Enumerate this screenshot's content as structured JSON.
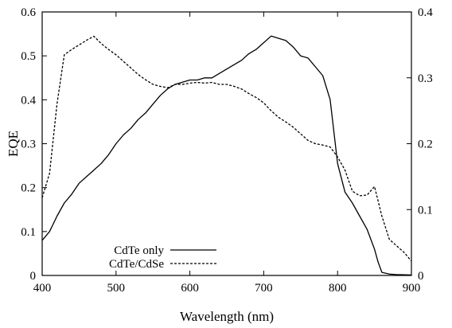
{
  "chart_data": {
    "type": "line",
    "xlabel": "Wavelength (nm)",
    "ylabel": "EQE",
    "y2label": "",
    "xlim": [
      400,
      900
    ],
    "ylim": [
      0,
      0.6
    ],
    "y2lim": [
      0,
      0.4
    ],
    "grid": false,
    "legend_position": "bottom-left",
    "x_ticks": [
      400,
      500,
      600,
      700,
      800,
      900
    ],
    "y_ticks": [
      0,
      0.1,
      0.2,
      0.3,
      0.4,
      0.5,
      0.6
    ],
    "y2_ticks": [
      0,
      0.1,
      0.2,
      0.3,
      0.4
    ],
    "x_tick_labels": [
      "400",
      "500",
      "600",
      "700",
      "800",
      "900"
    ],
    "y_tick_labels": [
      "0",
      "0.1",
      "0.2",
      "0.3",
      "0.4",
      "0.5",
      "0.6"
    ],
    "y2_tick_labels": [
      "0",
      "0.1",
      "0.2",
      "0.3",
      "0.4"
    ],
    "series": [
      {
        "name": "CdTe only",
        "axis": "left",
        "style": "solid",
        "color": "#000000",
        "x": [
          400,
          410,
          420,
          430,
          440,
          450,
          460,
          470,
          480,
          490,
          500,
          510,
          520,
          530,
          540,
          550,
          560,
          570,
          580,
          590,
          600,
          610,
          620,
          630,
          640,
          650,
          660,
          670,
          680,
          690,
          700,
          710,
          720,
          730,
          740,
          750,
          760,
          770,
          780,
          790,
          800,
          810,
          820,
          830,
          840,
          850,
          855,
          860,
          870,
          880,
          900
        ],
        "y": [
          0.08,
          0.1,
          0.135,
          0.165,
          0.185,
          0.21,
          0.225,
          0.24,
          0.255,
          0.275,
          0.3,
          0.32,
          0.335,
          0.355,
          0.37,
          0.39,
          0.41,
          0.425,
          0.435,
          0.44,
          0.445,
          0.445,
          0.45,
          0.45,
          0.46,
          0.47,
          0.48,
          0.49,
          0.505,
          0.515,
          0.53,
          0.545,
          0.54,
          0.535,
          0.52,
          0.5,
          0.495,
          0.475,
          0.455,
          0.4,
          0.255,
          0.19,
          0.165,
          0.135,
          0.105,
          0.06,
          0.03,
          0.007,
          0.003,
          0.002,
          0.001
        ]
      },
      {
        "name": "CdTe/CdSe",
        "axis": "right",
        "style": "dashed",
        "color": "#000000",
        "x": [
          400,
          410,
          420,
          430,
          440,
          450,
          460,
          470,
          480,
          490,
          500,
          510,
          520,
          530,
          540,
          550,
          560,
          570,
          580,
          590,
          600,
          610,
          620,
          630,
          640,
          650,
          660,
          670,
          680,
          690,
          700,
          710,
          720,
          730,
          740,
          750,
          760,
          770,
          780,
          790,
          800,
          810,
          820,
          830,
          840,
          850,
          860,
          870,
          880,
          890,
          900
        ],
        "y": [
          0.118,
          0.155,
          0.26,
          0.335,
          0.343,
          0.35,
          0.357,
          0.363,
          0.352,
          0.343,
          0.335,
          0.325,
          0.315,
          0.305,
          0.297,
          0.29,
          0.287,
          0.285,
          0.29,
          0.29,
          0.292,
          0.293,
          0.292,
          0.293,
          0.29,
          0.29,
          0.287,
          0.283,
          0.276,
          0.27,
          0.262,
          0.25,
          0.24,
          0.233,
          0.225,
          0.215,
          0.205,
          0.2,
          0.198,
          0.195,
          0.18,
          0.16,
          0.128,
          0.121,
          0.122,
          0.135,
          0.09,
          0.055,
          0.045,
          0.035,
          0.022
        ]
      }
    ]
  }
}
